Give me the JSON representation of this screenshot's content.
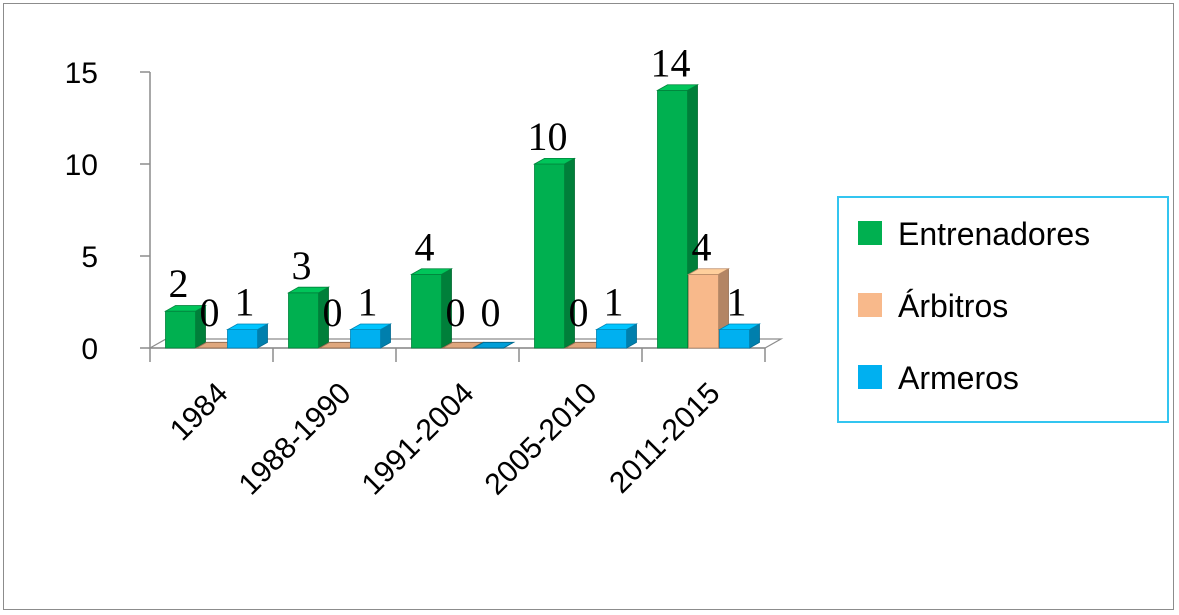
{
  "chart_data": {
    "type": "bar",
    "categories": [
      "1984",
      "1988-1990",
      "1991-2004",
      "2005-2010",
      "2011-2015"
    ],
    "series": [
      {
        "name": "Entrenadores",
        "color": "#00B050",
        "values": [
          2,
          3,
          4,
          10,
          14
        ]
      },
      {
        "name": "Árbitros",
        "color": "#F8B98B",
        "values": [
          0,
          0,
          0,
          0,
          4
        ]
      },
      {
        "name": "Armeros",
        "color": "#00B0F0",
        "values": [
          1,
          1,
          0,
          1,
          1
        ]
      }
    ],
    "yticks": [
      "0",
      "5",
      "10",
      "15"
    ],
    "ylim": [
      0,
      15
    ],
    "legend_position": "right",
    "grid": false,
    "data_labels": true
  }
}
